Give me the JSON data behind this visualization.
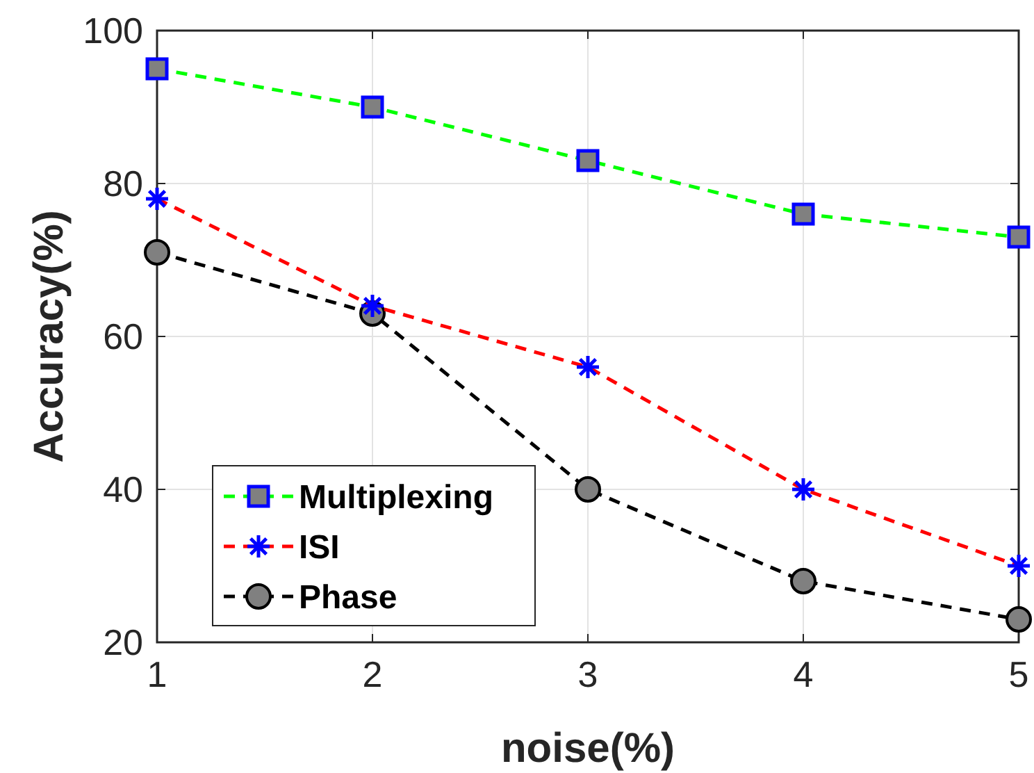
{
  "chart_data": {
    "type": "line",
    "xlabel": "noise(%)",
    "ylabel": "Accuracy(%)",
    "x": [
      1,
      2,
      3,
      4,
      5
    ],
    "series": [
      {
        "name": "Multiplexing",
        "color": "#00ff00",
        "marker": "square",
        "values": [
          95,
          90,
          83,
          76,
          73
        ]
      },
      {
        "name": "ISI",
        "color": "#ff0000",
        "marker": "cross",
        "values": [
          78,
          64,
          56,
          40,
          30
        ]
      },
      {
        "name": "Phase",
        "color": "#000000",
        "marker": "circle",
        "values": [
          71,
          63,
          40,
          28,
          23
        ]
      }
    ],
    "xlim": [
      1,
      5
    ],
    "xticks": [
      1,
      2,
      3,
      4,
      5
    ],
    "ylim": [
      20,
      100
    ],
    "yticks": [
      20,
      40,
      60,
      80,
      100
    ],
    "grid": true,
    "legend": "bottom left",
    "line_style": "dashed"
  }
}
